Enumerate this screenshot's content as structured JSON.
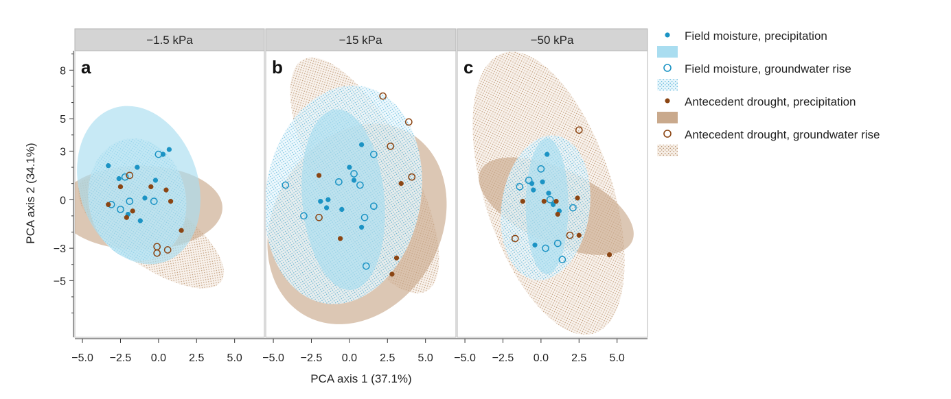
{
  "chart_data": {
    "type": "scatter",
    "xlabel": "PCA axis 1 (37.1%)",
    "ylabel": "PCA axis 2 (34.1%)",
    "xlim": [
      -5.5,
      7.0
    ],
    "ylim": [
      -8.5,
      9.2
    ],
    "x_ticks": [
      -5.0,
      -2.5,
      0.0,
      2.5,
      5.0
    ],
    "x_tick_labels": [
      "−5.0",
      "−2.5",
      "0.0",
      "2.5",
      "5.0"
    ],
    "y_ticks": [
      8,
      5,
      3,
      0,
      -3,
      -5
    ],
    "y_tick_labels": [
      "8",
      "5",
      "3",
      "0",
      "−3",
      "−5"
    ],
    "colors": {
      "blue": "#1B93C4",
      "blue_fill": "#A9DDF0",
      "brown": "#8B4513",
      "brown_fill": "#C9A98C",
      "strip": "#D4D4D4",
      "panel_border": "#B5B5B5"
    },
    "legend": [
      {
        "label": "Field moisture, precipitation",
        "marker": "filled",
        "color": "blue",
        "fill": "solid"
      },
      {
        "label": "Field moisture, groundwater rise",
        "marker": "open",
        "color": "blue",
        "fill": "dotted"
      },
      {
        "label": "Antecedent drought, precipitation",
        "marker": "filled",
        "color": "brown",
        "fill": "solid"
      },
      {
        "label": "Antecedent drought, groundwater rise",
        "marker": "open",
        "color": "brown",
        "fill": "dotted"
      }
    ],
    "panels": [
      {
        "title": "−1.5 kPa",
        "letter": "a",
        "ellipses": [
          {
            "series": "ad_gw",
            "cx": -0.5,
            "cy": -2.0,
            "rx": 2.2,
            "ry": 5.3,
            "angle": 55
          },
          {
            "series": "ad_pr",
            "cx": -1.2,
            "cy": -0.5,
            "rx": 5.4,
            "ry": 2.6,
            "angle": 0
          },
          {
            "series": "fm_gw",
            "cx": -1.4,
            "cy": 0.0,
            "rx": 3.2,
            "ry": 3.8,
            "angle": 10
          },
          {
            "series": "fm_pr",
            "cx": -1.3,
            "cy": 0.9,
            "rx": 3.9,
            "ry": 5.0,
            "angle": 18
          }
        ],
        "points": [
          {
            "series": "fm_pr",
            "x": -3.3,
            "y": 2.1
          },
          {
            "series": "fm_pr",
            "x": -1.4,
            "y": 2.0
          },
          {
            "series": "fm_pr",
            "x": -0.2,
            "y": 1.2
          },
          {
            "series": "fm_pr",
            "x": 0.7,
            "y": 3.1
          },
          {
            "series": "fm_pr",
            "x": 0.3,
            "y": 2.8
          },
          {
            "series": "fm_pr",
            "x": -0.9,
            "y": 0.1
          },
          {
            "series": "fm_pr",
            "x": -2.6,
            "y": 1.3
          },
          {
            "series": "fm_pr",
            "x": -2.0,
            "y": -0.9
          },
          {
            "series": "fm_pr",
            "x": -1.2,
            "y": -1.3
          },
          {
            "series": "fm_gw",
            "x": -3.1,
            "y": -0.3
          },
          {
            "series": "fm_gw",
            "x": -2.2,
            "y": 1.4
          },
          {
            "series": "fm_gw",
            "x": -1.9,
            "y": -0.1
          },
          {
            "series": "fm_gw",
            "x": -0.3,
            "y": -0.1
          },
          {
            "series": "fm_gw",
            "x": 0.0,
            "y": 2.8
          },
          {
            "series": "fm_gw",
            "x": -2.5,
            "y": -0.6
          },
          {
            "series": "ad_pr",
            "x": -2.5,
            "y": 0.8
          },
          {
            "series": "ad_pr",
            "x": -0.5,
            "y": 0.8
          },
          {
            "series": "ad_pr",
            "x": 0.5,
            "y": 0.6
          },
          {
            "series": "ad_pr",
            "x": 0.8,
            "y": -0.1
          },
          {
            "series": "ad_pr",
            "x": 1.5,
            "y": -1.9
          },
          {
            "series": "ad_pr",
            "x": -1.7,
            "y": -0.7
          },
          {
            "series": "ad_pr",
            "x": -3.3,
            "y": -0.3
          },
          {
            "series": "ad_pr",
            "x": -2.1,
            "y": -1.1
          },
          {
            "series": "ad_gw",
            "x": -0.1,
            "y": -2.9
          },
          {
            "series": "ad_gw",
            "x": -0.1,
            "y": -3.3
          },
          {
            "series": "ad_gw",
            "x": 0.6,
            "y": -3.1
          },
          {
            "series": "ad_gw",
            "x": -1.9,
            "y": 1.5
          }
        ]
      },
      {
        "title": "−15 kPa",
        "letter": "b",
        "ellipses": [
          {
            "series": "ad_gw",
            "cx": 1.0,
            "cy": 1.5,
            "rx": 3.1,
            "ry": 8.1,
            "angle": 28
          },
          {
            "series": "ad_pr",
            "cx": 0.5,
            "cy": -1.5,
            "rx": 5.5,
            "ry": 6.5,
            "angle": -30
          },
          {
            "series": "fm_gw",
            "cx": -0.4,
            "cy": 0.3,
            "rx": 5.1,
            "ry": 6.8,
            "angle": -10
          },
          {
            "series": "fm_pr",
            "cx": -0.4,
            "cy": 0.0,
            "rx": 2.7,
            "ry": 5.6,
            "angle": 5
          }
        ],
        "points": [
          {
            "series": "fm_pr",
            "x": 0.8,
            "y": 3.4
          },
          {
            "series": "fm_pr",
            "x": 0.0,
            "y": 2.0
          },
          {
            "series": "fm_pr",
            "x": 0.3,
            "y": 1.2
          },
          {
            "series": "fm_pr",
            "x": -1.9,
            "y": -0.1
          },
          {
            "series": "fm_pr",
            "x": -1.4,
            "y": 0.0
          },
          {
            "series": "fm_pr",
            "x": -1.5,
            "y": -0.5
          },
          {
            "series": "fm_pr",
            "x": -0.5,
            "y": -0.6
          },
          {
            "series": "fm_pr",
            "x": 0.8,
            "y": -1.7
          },
          {
            "series": "fm_gw",
            "x": -4.2,
            "y": 0.9
          },
          {
            "series": "fm_gw",
            "x": -3.0,
            "y": -1.0
          },
          {
            "series": "fm_gw",
            "x": -0.7,
            "y": 1.1
          },
          {
            "series": "fm_gw",
            "x": 0.3,
            "y": 1.6
          },
          {
            "series": "fm_gw",
            "x": 0.7,
            "y": 0.9
          },
          {
            "series": "fm_gw",
            "x": 1.6,
            "y": 2.8
          },
          {
            "series": "fm_gw",
            "x": 1.6,
            "y": -0.4
          },
          {
            "series": "fm_gw",
            "x": 1.1,
            "y": -4.1
          },
          {
            "series": "fm_gw",
            "x": 1.0,
            "y": -1.1
          },
          {
            "series": "ad_pr",
            "x": -2.0,
            "y": 1.5
          },
          {
            "series": "ad_pr",
            "x": -0.6,
            "y": -2.4
          },
          {
            "series": "ad_pr",
            "x": 3.4,
            "y": 1.0
          },
          {
            "series": "ad_pr",
            "x": 3.1,
            "y": -3.6
          },
          {
            "series": "ad_pr",
            "x": 2.8,
            "y": -4.6
          },
          {
            "series": "ad_gw",
            "x": 2.2,
            "y": 6.4
          },
          {
            "series": "ad_gw",
            "x": 3.9,
            "y": 4.8
          },
          {
            "series": "ad_gw",
            "x": 2.7,
            "y": 3.3
          },
          {
            "series": "ad_gw",
            "x": 4.1,
            "y": 1.4
          },
          {
            "series": "ad_gw",
            "x": -2.0,
            "y": -1.1
          }
        ]
      },
      {
        "title": "−50 kPa",
        "letter": "c",
        "ellipses": [
          {
            "series": "ad_gw",
            "cx": 0.5,
            "cy": 0.4,
            "rx": 4.2,
            "ry": 9.1,
            "angle": 18
          },
          {
            "series": "ad_pr",
            "cx": 1.0,
            "cy": -0.4,
            "rx": 5.5,
            "ry": 2.3,
            "angle": -25
          },
          {
            "series": "fm_gw",
            "cx": 0.3,
            "cy": -0.5,
            "rx": 2.9,
            "ry": 4.5,
            "angle": -8
          },
          {
            "series": "fm_pr",
            "cx": 0.4,
            "cy": -0.4,
            "rx": 1.4,
            "ry": 4.2,
            "angle": 0
          }
        ],
        "points": [
          {
            "series": "fm_pr",
            "x": 0.4,
            "y": 2.8
          },
          {
            "series": "fm_pr",
            "x": -0.6,
            "y": 1.0
          },
          {
            "series": "fm_pr",
            "x": 0.1,
            "y": 1.1
          },
          {
            "series": "fm_pr",
            "x": -0.5,
            "y": 0.6
          },
          {
            "series": "fm_pr",
            "x": 0.5,
            "y": 0.4
          },
          {
            "series": "fm_pr",
            "x": 0.8,
            "y": -0.3
          },
          {
            "series": "fm_pr",
            "x": 1.2,
            "y": -0.7
          },
          {
            "series": "fm_pr",
            "x": -0.4,
            "y": -2.8
          },
          {
            "series": "fm_gw",
            "x": -0.8,
            "y": 1.2
          },
          {
            "series": "fm_gw",
            "x": 0.0,
            "y": 1.9
          },
          {
            "series": "fm_gw",
            "x": 0.6,
            "y": 0.0
          },
          {
            "series": "fm_gw",
            "x": 0.3,
            "y": -3.0
          },
          {
            "series": "fm_gw",
            "x": 1.1,
            "y": -2.7
          },
          {
            "series": "fm_gw",
            "x": 1.4,
            "y": -3.7
          },
          {
            "series": "fm_gw",
            "x": 2.1,
            "y": -0.5
          },
          {
            "series": "fm_gw",
            "x": -1.4,
            "y": 0.8
          },
          {
            "series": "ad_pr",
            "x": -1.2,
            "y": -0.1
          },
          {
            "series": "ad_pr",
            "x": 0.2,
            "y": -0.1
          },
          {
            "series": "ad_pr",
            "x": 1.0,
            "y": -0.1
          },
          {
            "series": "ad_pr",
            "x": 2.4,
            "y": 0.1
          },
          {
            "series": "ad_pr",
            "x": 2.5,
            "y": -2.2
          },
          {
            "series": "ad_pr",
            "x": 4.5,
            "y": -3.4
          },
          {
            "series": "ad_pr",
            "x": 1.1,
            "y": -0.9
          },
          {
            "series": "ad_gw",
            "x": 2.5,
            "y": 4.3
          },
          {
            "series": "ad_gw",
            "x": -1.7,
            "y": -2.4
          },
          {
            "series": "ad_gw",
            "x": 1.9,
            "y": -2.2
          }
        ]
      }
    ]
  }
}
